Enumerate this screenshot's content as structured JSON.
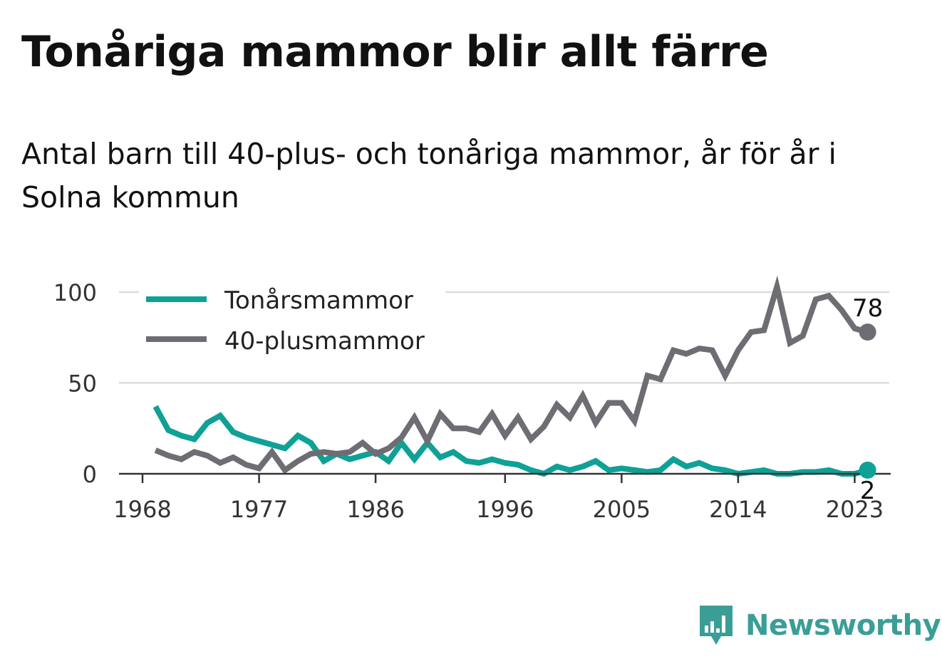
{
  "title": "Tonåriga mammor blir allt färre",
  "subtitle": "Antal barn till 40-plus- och tonåriga mammor, år för år i Solna kommun",
  "brand": {
    "name": "Newsworthy",
    "icon": "bar-chart-speech-bubble-icon",
    "color": "#3a9e97"
  },
  "chart_data": {
    "type": "line",
    "x": [
      1969,
      1970,
      1971,
      1972,
      1973,
      1974,
      1975,
      1976,
      1977,
      1978,
      1979,
      1980,
      1981,
      1982,
      1983,
      1984,
      1985,
      1986,
      1987,
      1988,
      1989,
      1990,
      1991,
      1992,
      1993,
      1994,
      1995,
      1996,
      1997,
      1998,
      1999,
      2000,
      2001,
      2002,
      2003,
      2004,
      2005,
      2006,
      2007,
      2008,
      2009,
      2010,
      2011,
      2012,
      2013,
      2014,
      2015,
      2016,
      2017,
      2018,
      2019,
      2020,
      2021,
      2022,
      2023,
      2024
    ],
    "series": [
      {
        "name": "Tonårsmammor",
        "color": "#0fa196",
        "values": [
          37,
          24,
          21,
          19,
          28,
          32,
          23,
          20,
          18,
          16,
          14,
          21,
          17,
          7,
          11,
          8,
          10,
          12,
          7,
          17,
          8,
          17,
          9,
          12,
          7,
          6,
          8,
          6,
          5,
          2,
          0,
          4,
          2,
          4,
          7,
          2,
          3,
          2,
          1,
          2,
          8,
          4,
          6,
          3,
          2,
          0,
          1,
          2,
          0,
          0,
          1,
          1,
          2,
          0,
          0,
          2
        ]
      },
      {
        "name": "40-plusmammor",
        "color": "#6e6d73",
        "values": [
          13,
          10,
          8,
          12,
          10,
          6,
          9,
          5,
          3,
          12,
          2,
          7,
          11,
          12,
          11,
          12,
          17,
          11,
          14,
          20,
          31,
          18,
          33,
          25,
          25,
          23,
          33,
          21,
          31,
          19,
          26,
          38,
          31,
          43,
          28,
          39,
          39,
          29,
          54,
          52,
          68,
          66,
          69,
          68,
          54,
          68,
          78,
          79,
          103,
          72,
          76,
          96,
          98,
          90,
          80,
          78
        ]
      }
    ],
    "y_ticks": [
      "100",
      "50",
      "0"
    ],
    "y_tick_values": [
      100,
      50,
      0
    ],
    "x_ticks": [
      "1968",
      "1977",
      "1986",
      "1996",
      "2005",
      "2014",
      "2023"
    ],
    "x_tick_values": [
      1968,
      1977,
      1986,
      1996,
      2005,
      2014,
      2023
    ],
    "ylim": [
      0,
      100
    ],
    "xlim": [
      1968,
      2024
    ],
    "end_labels": [
      "2",
      "78"
    ],
    "grid": true,
    "legend": "top-left"
  }
}
